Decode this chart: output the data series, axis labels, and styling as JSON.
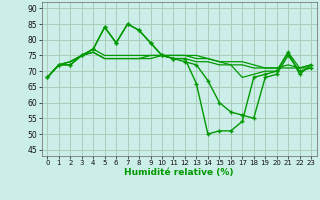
{
  "xlabel": "Humidité relative (%)",
  "xlim": [
    -0.5,
    23.5
  ],
  "ylim": [
    43,
    92
  ],
  "yticks": [
    45,
    50,
    55,
    60,
    65,
    70,
    75,
    80,
    85,
    90
  ],
  "xticks": [
    0,
    1,
    2,
    3,
    4,
    5,
    6,
    7,
    8,
    9,
    10,
    11,
    12,
    13,
    14,
    15,
    16,
    17,
    18,
    19,
    20,
    21,
    22,
    23
  ],
  "bg_color": "#cceee8",
  "grid_color": "#aaccbb",
  "line_color": "#009900",
  "series": [
    [
      68,
      72,
      72,
      75,
      77,
      84,
      79,
      85,
      83,
      79,
      75,
      74,
      73,
      72,
      67,
      60,
      57,
      56,
      55,
      68,
      69,
      75,
      70,
      71
    ],
    [
      68,
      72,
      73,
      75,
      76,
      74,
      74,
      74,
      74,
      74,
      75,
      74,
      74,
      73,
      73,
      72,
      72,
      72,
      71,
      71,
      71,
      71,
      71,
      71
    ],
    [
      68,
      72,
      73,
      75,
      76,
      74,
      74,
      74,
      74,
      75,
      75,
      75,
      75,
      74,
      74,
      73,
      73,
      73,
      72,
      71,
      71,
      72,
      71,
      72
    ],
    [
      68,
      72,
      73,
      75,
      77,
      75,
      75,
      75,
      75,
      75,
      75,
      75,
      75,
      75,
      74,
      73,
      72,
      68,
      69,
      70,
      70,
      76,
      71,
      72
    ],
    [
      68,
      72,
      72,
      75,
      77,
      84,
      79,
      85,
      83,
      79,
      75,
      74,
      74,
      66,
      50,
      51,
      51,
      54,
      68,
      69,
      70,
      76,
      69,
      72
    ]
  ],
  "series_styles": [
    {
      "marker": "+",
      "linestyle": "-",
      "lw": 1.0
    },
    {
      "marker": null,
      "linestyle": "-",
      "lw": 0.9
    },
    {
      "marker": null,
      "linestyle": "-",
      "lw": 0.9
    },
    {
      "marker": null,
      "linestyle": "-",
      "lw": 0.9
    },
    {
      "marker": "+",
      "linestyle": "-",
      "lw": 1.0
    }
  ]
}
